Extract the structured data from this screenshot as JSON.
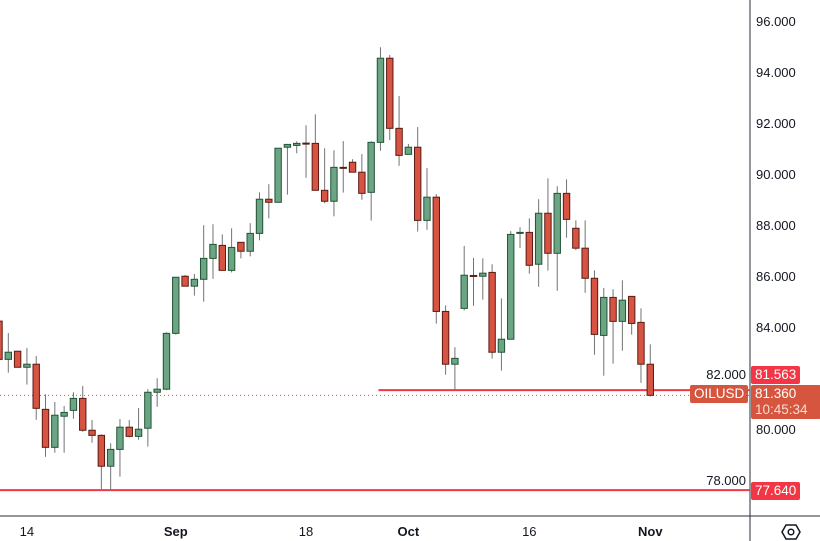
{
  "chart_data": {
    "type": "candlestick",
    "symbol": "OILUSD",
    "ylim": [
      77.0,
      96.9
    ],
    "y_ticks": [
      "96.000",
      "94.000",
      "92.000",
      "90.000",
      "88.000",
      "86.000",
      "84.000",
      "82.000",
      "80.000",
      "78.000"
    ],
    "y_tick_values": [
      96,
      94,
      92,
      90,
      88,
      86,
      84,
      82,
      80,
      78
    ],
    "x_ticks": [
      {
        "label": "14",
        "index": 3,
        "bold": false
      },
      {
        "label": "Sep",
        "index": 19,
        "bold": true
      },
      {
        "label": "18",
        "index": 33,
        "bold": false
      },
      {
        "label": "Oct",
        "index": 44,
        "bold": true
      },
      {
        "label": "16",
        "index": 57,
        "bold": false
      },
      {
        "label": "Nov",
        "index": 70,
        "bold": true
      }
    ],
    "grid": false,
    "colors": {
      "up": "#6ba583",
      "up_border": "#225437",
      "down": "#d75442",
      "down_border": "#5b1a13",
      "wick": "#737375",
      "level": "#f23645",
      "last_price": "#d6553f"
    },
    "ohlc": [
      [
        84.27,
        84.27,
        82.77,
        82.77
      ],
      [
        82.77,
        83.8,
        82.25,
        83.05
      ],
      [
        83.09,
        83.09,
        82.46,
        82.46
      ],
      [
        82.46,
        83.22,
        81.78,
        82.58
      ],
      [
        82.58,
        82.9,
        80.4,
        80.85
      ],
      [
        80.81,
        81.4,
        78.95,
        79.32
      ],
      [
        79.32,
        81.1,
        79.11,
        80.58
      ],
      [
        80.54,
        80.94,
        79.11,
        80.69
      ],
      [
        80.77,
        81.48,
        80.44,
        81.24
      ],
      [
        81.24,
        81.73,
        79.93,
        79.99
      ],
      [
        79.99,
        80.39,
        79.5,
        79.79
      ],
      [
        79.79,
        79.83,
        77.68,
        78.58
      ],
      [
        78.58,
        79.48,
        77.62,
        79.24
      ],
      [
        79.24,
        80.43,
        78.17,
        80.11
      ],
      [
        80.11,
        80.39,
        79.71,
        79.75
      ],
      [
        79.75,
        80.86,
        79.62,
        80.03
      ],
      [
        80.07,
        81.6,
        79.35,
        81.48
      ],
      [
        81.48,
        82.03,
        80.91,
        81.6
      ],
      [
        81.6,
        83.83,
        81.56,
        83.79
      ],
      [
        83.79,
        85.99,
        83.74,
        85.99
      ],
      [
        86.03,
        86.08,
        85.64,
        85.64
      ],
      [
        85.64,
        86.12,
        85.27,
        85.91
      ],
      [
        85.91,
        88.03,
        85.03,
        86.73
      ],
      [
        86.73,
        88.07,
        85.93,
        87.28
      ],
      [
        87.24,
        87.67,
        86.26,
        86.26
      ],
      [
        86.26,
        87.91,
        86.18,
        87.16
      ],
      [
        87.36,
        87.36,
        86.73,
        87.01
      ],
      [
        87.01,
        88.11,
        86.81,
        87.71
      ],
      [
        87.71,
        89.32,
        87.44,
        89.05
      ],
      [
        89.05,
        89.64,
        88.3,
        88.93
      ],
      [
        88.93,
        91.05,
        88.93,
        91.05
      ],
      [
        91.09,
        91.2,
        89.23,
        91.2
      ],
      [
        91.16,
        91.32,
        90.85,
        91.24
      ],
      [
        91.25,
        91.95,
        89.89,
        91.23
      ],
      [
        91.24,
        92.38,
        89.4,
        89.4
      ],
      [
        89.4,
        91.05,
        88.89,
        88.97
      ],
      [
        88.97,
        90.97,
        88.38,
        90.3
      ],
      [
        90.3,
        91.33,
        89.31,
        90.28
      ],
      [
        90.5,
        90.62,
        90.11,
        90.11
      ],
      [
        90.11,
        90.82,
        89.03,
        89.28
      ],
      [
        89.32,
        91.32,
        88.21,
        91.28
      ],
      [
        91.28,
        95.01,
        90.95,
        94.58
      ],
      [
        94.58,
        94.71,
        91.37,
        91.83
      ],
      [
        91.83,
        93.1,
        90.36,
        90.77
      ],
      [
        90.81,
        91.22,
        90.81,
        91.09
      ],
      [
        91.09,
        91.88,
        87.78,
        88.22
      ],
      [
        88.22,
        90.27,
        87.85,
        89.13
      ],
      [
        89.13,
        89.25,
        84.17,
        84.65
      ],
      [
        84.65,
        84.89,
        82.17,
        82.58
      ],
      [
        82.58,
        83.25,
        81.57,
        82.81
      ],
      [
        84.77,
        87.22,
        84.69,
        86.07
      ],
      [
        86.06,
        86.75,
        84.87,
        86.04
      ],
      [
        86.03,
        86.73,
        85.11,
        86.15
      ],
      [
        86.18,
        86.5,
        82.8,
        83.05
      ],
      [
        83.05,
        85.16,
        82.33,
        83.56
      ],
      [
        83.56,
        87.8,
        83.56,
        87.67
      ],
      [
        87.73,
        87.95,
        87.14,
        87.75
      ],
      [
        87.75,
        88.3,
        86.13,
        86.46
      ],
      [
        86.5,
        89.05,
        85.62,
        88.5
      ],
      [
        88.5,
        89.87,
        86.25,
        86.93
      ],
      [
        86.93,
        89.56,
        85.46,
        89.28
      ],
      [
        89.28,
        89.83,
        87.54,
        88.26
      ],
      [
        87.91,
        88.22,
        87.05,
        87.13
      ],
      [
        87.13,
        88.22,
        85.38,
        85.95
      ],
      [
        85.95,
        86.26,
        82.95,
        83.75
      ],
      [
        83.71,
        85.57,
        82.13,
        85.2
      ],
      [
        85.2,
        85.52,
        82.6,
        84.26
      ],
      [
        84.26,
        85.87,
        83.11,
        85.09
      ],
      [
        85.24,
        85.24,
        83.74,
        84.18
      ],
      [
        84.22,
        84.77,
        81.85,
        82.58
      ],
      [
        82.58,
        83.36,
        81.31,
        81.36
      ]
    ],
    "levels": [
      {
        "price": 81.563,
        "label": "81.563",
        "from_index": 41
      },
      {
        "price": 77.64,
        "label": "77.640",
        "from_index": 0
      }
    ],
    "last_price": {
      "value": 81.36,
      "label": "81.360",
      "countdown": "10:45:34",
      "symbol_label": "OILUSD"
    }
  }
}
